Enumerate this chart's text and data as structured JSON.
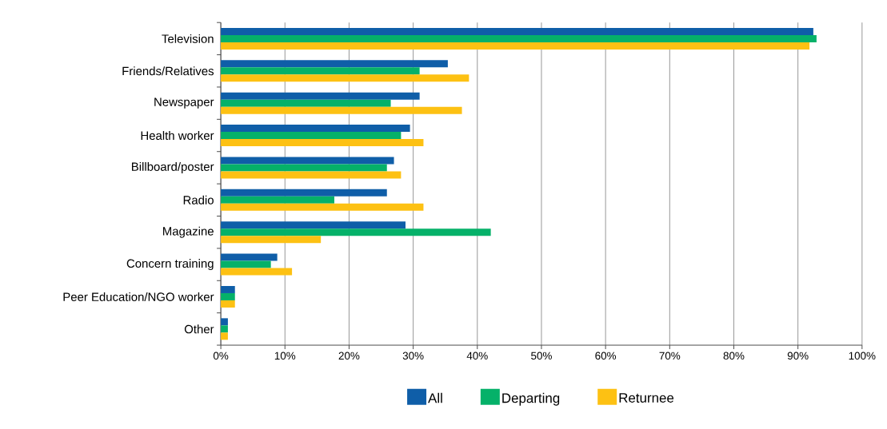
{
  "chart_data": {
    "type": "bar",
    "orientation": "horizontal",
    "categories": [
      "Television",
      "Friends/Relatives",
      "Newspaper",
      "Health worker",
      "Billboard/poster",
      "Radio",
      "Magazine",
      "Concern training",
      "Peer Education/NGO worker",
      "Other"
    ],
    "series": [
      {
        "name": "All",
        "color": "#0f5ea8",
        "values": [
          92.4,
          35.4,
          31.0,
          29.5,
          27.0,
          25.9,
          28.8,
          8.8,
          2.2,
          1.1
        ]
      },
      {
        "name": "Departing",
        "color": "#05b169",
        "values": [
          92.9,
          31.0,
          26.5,
          28.1,
          25.9,
          17.7,
          42.1,
          7.8,
          2.2,
          1.1
        ]
      },
      {
        "name": "Returnee",
        "color": "#fdc113",
        "values": [
          91.8,
          38.7,
          37.6,
          31.6,
          28.1,
          31.6,
          15.6,
          11.1,
          2.2,
          1.1
        ]
      }
    ],
    "xlim": [
      0,
      100
    ],
    "xticks": [
      {
        "value": 0,
        "label": "0%"
      },
      {
        "value": 10,
        "label": "10%"
      },
      {
        "value": 20,
        "label": "20%"
      },
      {
        "value": 30,
        "label": "30%"
      },
      {
        "value": 40,
        "label": "40%"
      },
      {
        "value": 50,
        "label": "50%"
      },
      {
        "value": 60,
        "label": "60%"
      },
      {
        "value": 70,
        "label": "70%"
      },
      {
        "value": 80,
        "label": "80%"
      },
      {
        "value": 90,
        "label": "90%"
      },
      {
        "value": 100,
        "label": "100%"
      }
    ],
    "grid": "x",
    "legend": "bottom"
  }
}
